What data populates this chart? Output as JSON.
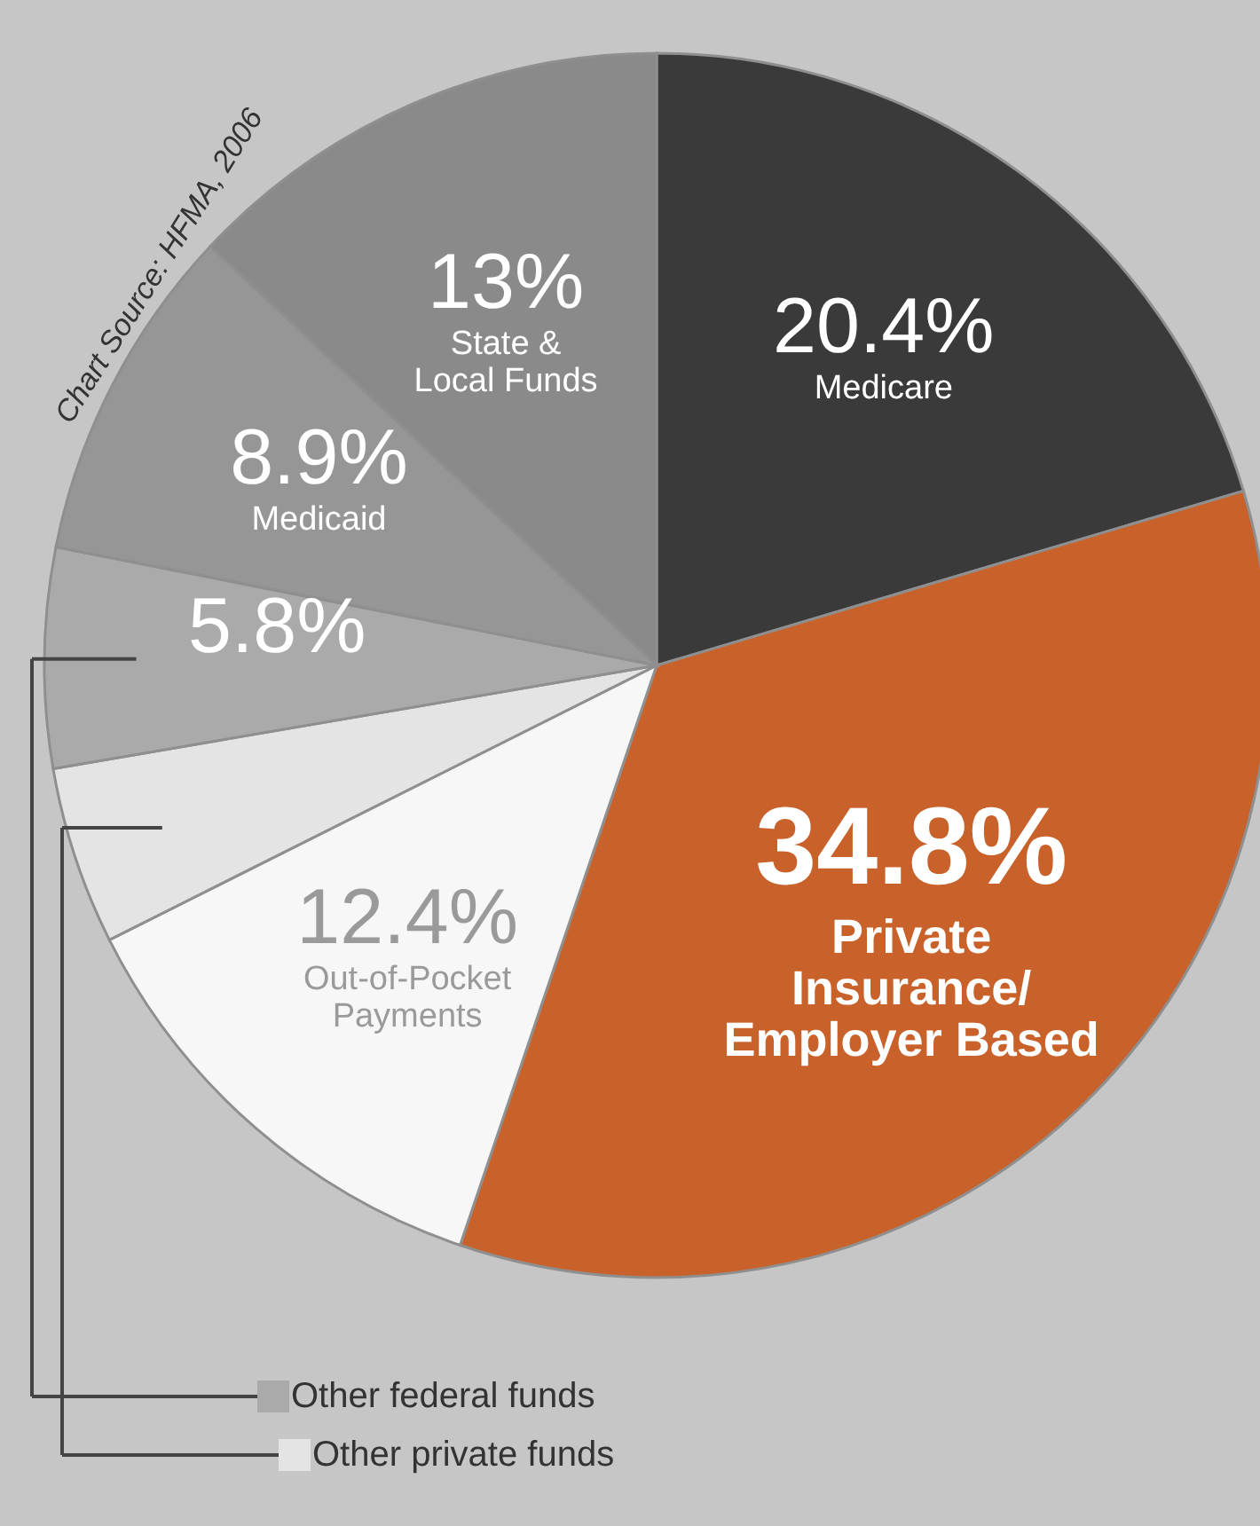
{
  "chart_data": {
    "type": "pie",
    "categories": [
      "Medicare",
      "Private\nInsurance/\nEmployer Based",
      "Out-of-Pocket\nPayments",
      "Other private funds",
      "Other federal funds",
      "Medicaid",
      "State &\nLocal Funds"
    ],
    "values": [
      20.4,
      34.8,
      12.4,
      4.7,
      5.8,
      8.9,
      13
    ],
    "value_labels": [
      "20.4%",
      "34.8%",
      "12.4%",
      null,
      "5.8%",
      "8.9%",
      "13%"
    ],
    "colors": [
      "#3a3a3a",
      "#c8622a",
      "#f7f7f7",
      "#e4e4e4",
      "#aaaaaa",
      "#969696",
      "#8a8a8a"
    ],
    "annotations": [
      "Chart Source: HFMA, 2006"
    ],
    "legend": "bottom left"
  }
}
